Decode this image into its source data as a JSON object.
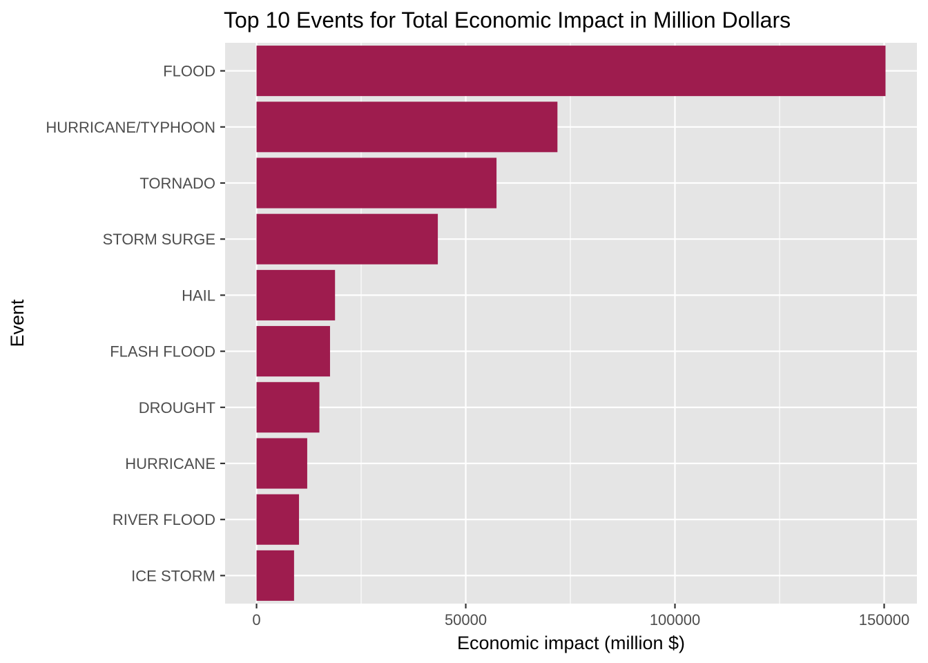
{
  "chart_data": {
    "type": "bar",
    "orientation": "horizontal",
    "title": "Top 10 Events for Total Economic Impact in Million Dollars",
    "xlabel": "Economic impact (million $)",
    "ylabel": "Event",
    "categories": [
      "FLOOD",
      "HURRICANE/TYPHOON",
      "TORNADO",
      "STORM SURGE",
      "HAIL",
      "FLASH FLOOD",
      "DROUGHT",
      "HURRICANE",
      "RIVER FLOOD",
      "ICE STORM"
    ],
    "values": [
      150320,
      71914,
      57352,
      43324,
      18758,
      17562,
      15019,
      12110,
      10148,
      8967
    ],
    "xlim": [
      -7516,
      157836
    ],
    "xticks": [
      0,
      50000,
      100000,
      150000
    ],
    "xtick_labels": [
      "0",
      "50000",
      "100000",
      "150000"
    ],
    "grid": true,
    "legend": "none",
    "colors": {
      "bar": "#9e1c4e",
      "panel": "#e5e5e5",
      "grid": "#ffffff"
    }
  }
}
